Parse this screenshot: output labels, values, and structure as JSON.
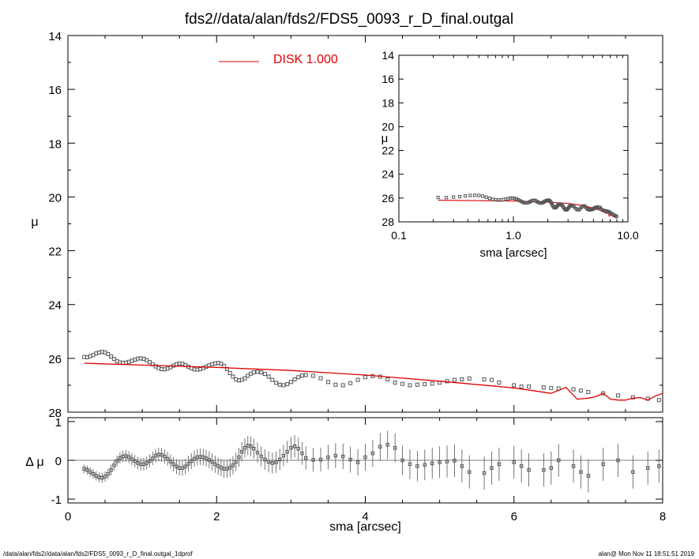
{
  "title": "fds2//data/alan/fds2/FDS5_0093_r_D_final.outgal",
  "footer": {
    "left": "/data/alan/fds2//data/alan/fds2/FDS5_0093_r_D_final.outgal_1dprof",
    "right": "alan@  Mon Nov 11 18:51:51 2019"
  },
  "legend": {
    "label": "DISK  1.000",
    "color": "#e00000"
  },
  "colors": {
    "model": "#e00000",
    "points": "#555555",
    "axis": "#000000"
  },
  "chart_data": [
    {
      "type": "scatter",
      "panel": "main",
      "ylabel": "μ",
      "xlim": [
        0,
        8
      ],
      "ylim": [
        28,
        14
      ],
      "yticks": [
        14,
        16,
        18,
        20,
        22,
        24,
        26,
        28
      ],
      "series": [
        {
          "name": "data",
          "x": [
            0.22,
            0.26,
            0.3,
            0.34,
            0.38,
            0.42,
            0.46,
            0.5,
            0.54,
            0.58,
            0.62,
            0.66,
            0.7,
            0.74,
            0.78,
            0.82,
            0.86,
            0.9,
            0.94,
            0.98,
            1.02,
            1.06,
            1.1,
            1.14,
            1.18,
            1.22,
            1.26,
            1.3,
            1.34,
            1.38,
            1.42,
            1.46,
            1.5,
            1.54,
            1.58,
            1.62,
            1.66,
            1.7,
            1.74,
            1.78,
            1.82,
            1.86,
            1.9,
            1.94,
            1.98,
            2.02,
            2.06,
            2.1,
            2.14,
            2.18,
            2.22,
            2.26,
            2.3,
            2.34,
            2.38,
            2.42,
            2.46,
            2.5,
            2.55,
            2.6,
            2.65,
            2.7,
            2.75,
            2.8,
            2.85,
            2.9,
            2.95,
            3.0,
            3.05,
            3.1,
            3.15,
            3.2,
            3.3,
            3.4,
            3.5,
            3.6,
            3.7,
            3.8,
            3.9,
            4.0,
            4.1,
            4.2,
            4.3,
            4.4,
            4.5,
            4.6,
            4.7,
            4.8,
            4.9,
            5.0,
            5.1,
            5.2,
            5.3,
            5.4,
            5.6,
            5.7,
            5.8,
            6.0,
            6.1,
            6.2,
            6.4,
            6.5,
            6.6,
            6.8,
            6.9,
            7.0,
            7.2,
            7.4,
            7.6,
            7.8,
            7.95
          ],
          "y": [
            25.95,
            25.96,
            25.92,
            25.88,
            25.82,
            25.78,
            25.76,
            25.78,
            25.84,
            25.93,
            26.02,
            26.1,
            26.15,
            26.17,
            26.16,
            26.13,
            26.09,
            26.05,
            26.01,
            26.0,
            26.02,
            26.07,
            26.14,
            26.22,
            26.3,
            26.36,
            26.4,
            26.41,
            26.38,
            26.33,
            26.27,
            26.22,
            26.19,
            26.2,
            26.25,
            26.31,
            26.37,
            26.41,
            26.42,
            26.4,
            26.36,
            26.31,
            26.26,
            26.22,
            26.19,
            26.17,
            26.2,
            26.28,
            26.4,
            26.55,
            26.68,
            26.78,
            26.82,
            26.8,
            26.74,
            26.65,
            26.57,
            26.52,
            26.5,
            26.52,
            26.58,
            26.68,
            26.8,
            26.91,
            26.98,
            27.0,
            26.96,
            26.88,
            26.78,
            26.7,
            26.64,
            26.62,
            26.65,
            26.74,
            26.88,
            26.98,
            27.0,
            26.92,
            26.8,
            26.7,
            26.66,
            26.68,
            26.78,
            26.9,
            26.95,
            27.0,
            26.98,
            26.96,
            26.94,
            26.9,
            26.85,
            26.8,
            26.78,
            26.75,
            26.78,
            26.8,
            26.9,
            27.0,
            27.05,
            27.05,
            27.08,
            27.1,
            27.12,
            27.15,
            27.2,
            27.25,
            27.3,
            27.38,
            27.45,
            27.5,
            27.55
          ]
        },
        {
          "name": "DISK  1.000",
          "x": [
            0.22,
            1.0,
            2.0,
            3.0,
            4.0,
            5.0,
            6.0,
            6.5,
            6.7,
            6.85,
            7.0,
            7.1,
            7.2,
            7.3,
            7.4,
            7.5,
            7.6,
            7.7,
            7.8,
            7.9,
            8.0
          ],
          "y": [
            26.18,
            26.25,
            26.34,
            26.45,
            26.62,
            26.85,
            27.1,
            27.3,
            27.08,
            27.52,
            27.48,
            27.42,
            27.3,
            27.52,
            27.55,
            27.55,
            27.48,
            27.46,
            27.55,
            27.4,
            27.3
          ]
        }
      ]
    },
    {
      "type": "scatter",
      "panel": "residual",
      "xlabel": "sma [arcsec]",
      "ylabel": "Δ μ",
      "xlim": [
        0,
        8
      ],
      "ylim": [
        -1.1,
        1.1
      ],
      "xticks": [
        0,
        2,
        4,
        6,
        8
      ],
      "yticks": [
        -1,
        0,
        1
      ],
      "series": [
        {
          "name": "residual",
          "x": [
            0.22,
            0.26,
            0.3,
            0.34,
            0.38,
            0.42,
            0.46,
            0.5,
            0.54,
            0.58,
            0.62,
            0.66,
            0.7,
            0.74,
            0.78,
            0.82,
            0.86,
            0.9,
            0.94,
            0.98,
            1.02,
            1.06,
            1.1,
            1.14,
            1.18,
            1.22,
            1.26,
            1.3,
            1.34,
            1.38,
            1.42,
            1.46,
            1.5,
            1.54,
            1.58,
            1.62,
            1.66,
            1.7,
            1.74,
            1.78,
            1.82,
            1.86,
            1.9,
            1.94,
            1.98,
            2.02,
            2.06,
            2.1,
            2.14,
            2.18,
            2.22,
            2.26,
            2.3,
            2.34,
            2.38,
            2.42,
            2.46,
            2.5,
            2.55,
            2.6,
            2.65,
            2.7,
            2.75,
            2.8,
            2.85,
            2.9,
            2.95,
            3.0,
            3.05,
            3.1,
            3.15,
            3.2,
            3.3,
            3.4,
            3.5,
            3.6,
            3.7,
            3.8,
            3.9,
            4.0,
            4.1,
            4.2,
            4.3,
            4.4,
            4.5,
            4.6,
            4.7,
            4.8,
            4.9,
            5.0,
            5.1,
            5.2,
            5.3,
            5.4,
            5.6,
            5.7,
            5.8,
            6.0,
            6.1,
            6.2,
            6.4,
            6.5,
            6.6,
            6.8,
            6.9,
            7.0,
            7.2,
            7.4,
            7.6,
            7.8,
            7.95
          ],
          "y": [
            -0.22,
            -0.25,
            -0.3,
            -0.35,
            -0.4,
            -0.44,
            -0.45,
            -0.42,
            -0.35,
            -0.25,
            -0.13,
            -0.02,
            0.06,
            0.1,
            0.11,
            0.08,
            0.03,
            -0.02,
            -0.07,
            -0.1,
            -0.1,
            -0.07,
            -0.02,
            0.05,
            0.12,
            0.15,
            0.14,
            0.1,
            0.04,
            -0.03,
            -0.1,
            -0.16,
            -0.2,
            -0.2,
            -0.16,
            -0.09,
            -0.02,
            0.04,
            0.08,
            0.09,
            0.08,
            0.05,
            0.01,
            -0.04,
            -0.1,
            -0.15,
            -0.19,
            -0.22,
            -0.22,
            -0.19,
            -0.13,
            -0.04,
            0.08,
            0.22,
            0.32,
            0.38,
            0.36,
            0.3,
            0.2,
            0.1,
            0.02,
            -0.04,
            -0.07,
            -0.05,
            0.02,
            0.12,
            0.22,
            0.32,
            0.36,
            0.3,
            0.18,
            0.06,
            0.01,
            0.02,
            0.08,
            0.12,
            0.1,
            0.02,
            -0.05,
            0.08,
            0.18,
            0.35,
            0.4,
            0.32,
            0.0,
            -0.1,
            -0.15,
            -0.12,
            -0.08,
            -0.05,
            -0.03,
            -0.01,
            -0.15,
            -0.3,
            -0.33,
            -0.2,
            -0.1,
            -0.05,
            -0.15,
            -0.25,
            -0.25,
            -0.2,
            0.0,
            -0.15,
            -0.3,
            -0.4,
            -0.1,
            0.0,
            -0.3,
            -0.2,
            -0.15
          ]
        }
      ]
    },
    {
      "type": "scatter",
      "panel": "inset",
      "xlabel": "sma [arcsec]",
      "ylabel": "μ",
      "xscale": "log",
      "xlim": [
        0.1,
        10.0
      ],
      "ylim": [
        28,
        14
      ],
      "xticks": [
        "0.1",
        "1.0",
        "10.0"
      ],
      "yticks": [
        14,
        16,
        18,
        20,
        22,
        24,
        26,
        28
      ],
      "series": [
        {
          "name": "data",
          "x": [
            0.22,
            0.26,
            0.3,
            0.34,
            0.38,
            0.42,
            0.46,
            0.5,
            0.54,
            0.58,
            0.62,
            0.66,
            0.7,
            0.74,
            0.78,
            0.82,
            0.86,
            0.9,
            0.94,
            0.98,
            1.02,
            1.06,
            1.1,
            1.14,
            1.18,
            1.22,
            1.26,
            1.3,
            1.34,
            1.38,
            1.42,
            1.46,
            1.5,
            1.54,
            1.58,
            1.62,
            1.66,
            1.7,
            1.74,
            1.78,
            1.82,
            1.86,
            1.9,
            1.94,
            1.98,
            2.02,
            2.06,
            2.1,
            2.14,
            2.18,
            2.22,
            2.26,
            2.3,
            2.34,
            2.38,
            2.42,
            2.46,
            2.5,
            2.55,
            2.6,
            2.65,
            2.7,
            2.75,
            2.8,
            2.85,
            2.9,
            2.95,
            3.0,
            3.05,
            3.1,
            3.15,
            3.2,
            3.3,
            3.4,
            3.5,
            3.6,
            3.7,
            3.8,
            3.9,
            4.0,
            4.1,
            4.2,
            4.3,
            4.4,
            4.5,
            4.6,
            4.7,
            4.8,
            4.9,
            5.0,
            5.1,
            5.2,
            5.3,
            5.4,
            5.6,
            5.7,
            5.8,
            6.0,
            6.1,
            6.2,
            6.4,
            6.5,
            6.6,
            6.8,
            6.9,
            7.0,
            7.2,
            7.4,
            7.6,
            7.8,
            7.95
          ],
          "y": [
            25.95,
            25.96,
            25.92,
            25.88,
            25.82,
            25.78,
            25.76,
            25.78,
            25.84,
            25.93,
            26.02,
            26.1,
            26.15,
            26.17,
            26.16,
            26.13,
            26.09,
            26.05,
            26.01,
            26.0,
            26.02,
            26.07,
            26.14,
            26.22,
            26.3,
            26.36,
            26.4,
            26.41,
            26.38,
            26.33,
            26.27,
            26.22,
            26.19,
            26.2,
            26.25,
            26.31,
            26.37,
            26.41,
            26.42,
            26.4,
            26.36,
            26.31,
            26.26,
            26.22,
            26.19,
            26.17,
            26.2,
            26.28,
            26.4,
            26.55,
            26.68,
            26.78,
            26.82,
            26.8,
            26.74,
            26.65,
            26.57,
            26.52,
            26.5,
            26.52,
            26.58,
            26.68,
            26.8,
            26.91,
            26.98,
            27.0,
            26.96,
            26.88,
            26.78,
            26.7,
            26.64,
            26.62,
            26.65,
            26.74,
            26.88,
            26.98,
            27.0,
            26.92,
            26.8,
            26.7,
            26.66,
            26.68,
            26.78,
            26.9,
            26.95,
            27.0,
            26.98,
            26.96,
            26.94,
            26.9,
            26.85,
            26.8,
            26.78,
            26.75,
            26.78,
            26.8,
            26.9,
            27.0,
            27.05,
            27.05,
            27.08,
            27.1,
            27.12,
            27.15,
            27.2,
            27.25,
            27.3,
            27.38,
            27.45,
            27.5,
            27.55
          ]
        },
        {
          "name": "DISK  1.000",
          "x": [
            0.22,
            1.0,
            2.0,
            3.0,
            4.0,
            5.0,
            6.0,
            6.5,
            6.7,
            6.85,
            7.0,
            7.1,
            7.2,
            7.3,
            7.4,
            7.5,
            7.6,
            7.7,
            7.8,
            7.9
          ],
          "y": [
            26.18,
            26.25,
            26.34,
            26.45,
            26.62,
            26.85,
            27.1,
            27.3,
            27.08,
            27.52,
            27.48,
            27.42,
            27.3,
            27.52,
            27.55,
            27.55,
            27.48,
            27.46,
            27.55,
            27.4
          ]
        }
      ]
    }
  ]
}
